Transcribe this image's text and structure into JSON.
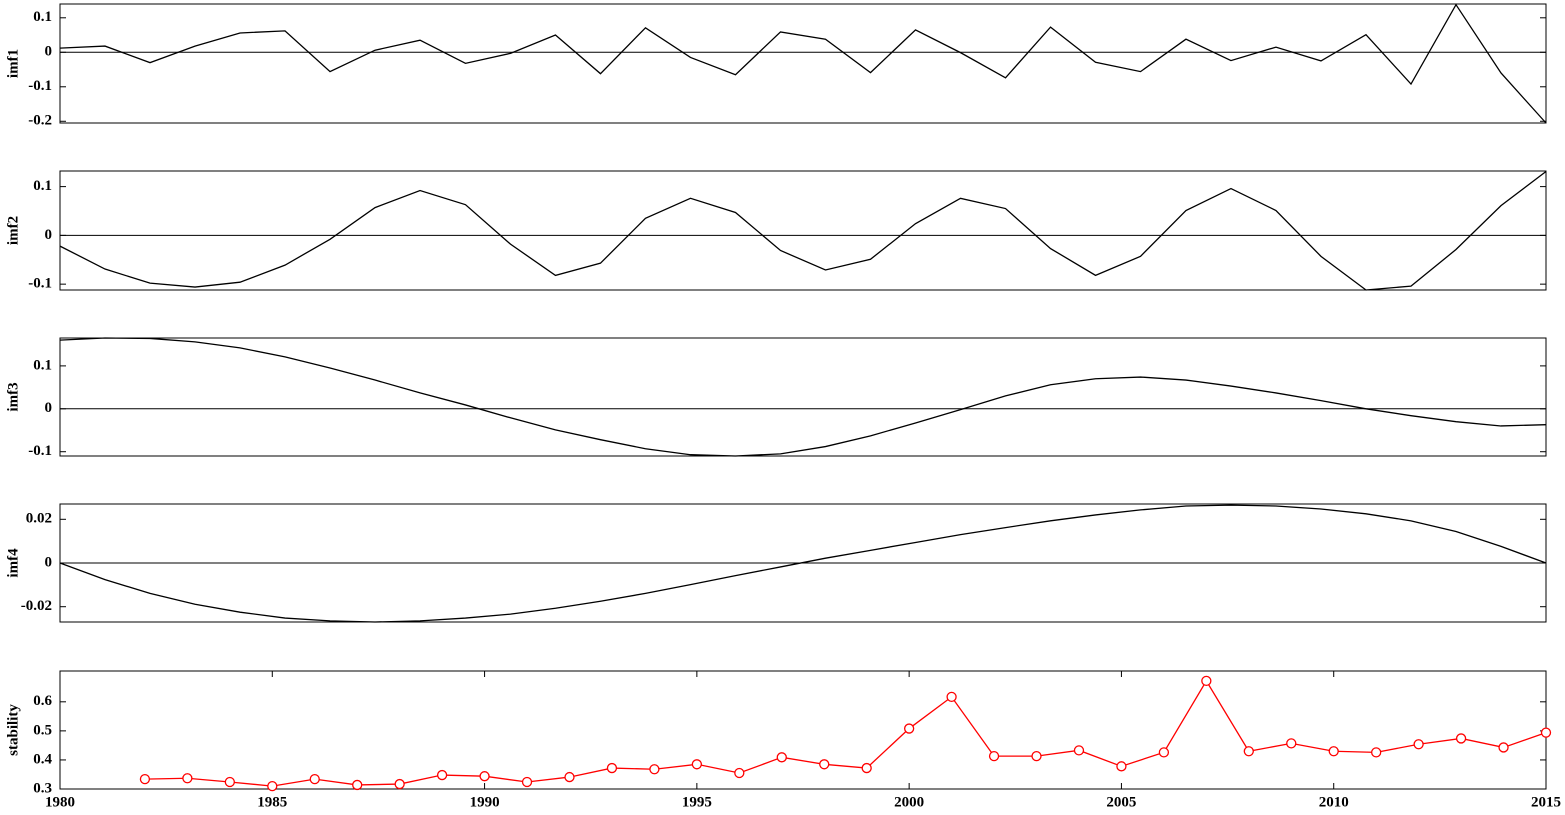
{
  "chart_data": [
    {
      "type": "line",
      "ylabel": "imf1",
      "color": "#000000",
      "xlim": [
        1980,
        2015
      ],
      "ylim": [
        -0.205,
        0.14
      ],
      "yticks": [
        -0.2,
        -0.1,
        0,
        0.1
      ],
      "x": [
        1980,
        1981.06,
        1982.12,
        1983.18,
        1984.24,
        1985.3,
        1986.36,
        1987.42,
        1988.48,
        1989.55,
        1990.61,
        1991.67,
        1992.73,
        1993.79,
        1994.85,
        1995.91,
        1996.97,
        1998.03,
        1999.09,
        2000.15,
        2001.21,
        2002.27,
        2003.33,
        2004.39,
        2005.45,
        2006.52,
        2007.58,
        2008.64,
        2009.7,
        2010.76,
        2011.82,
        2012.88,
        2013.94,
        2015
      ],
      "values": [
        0.012,
        0.018,
        -0.03,
        0.018,
        0.056,
        0.062,
        -0.056,
        0.006,
        0.035,
        -0.032,
        -0.003,
        0.05,
        -0.062,
        0.071,
        -0.015,
        -0.065,
        0.059,
        0.038,
        -0.059,
        0.065,
        -0.001,
        -0.074,
        0.073,
        -0.029,
        -0.056,
        0.038,
        -0.024,
        0.015,
        -0.025,
        0.051,
        -0.092,
        0.138,
        -0.06,
        -0.205
      ]
    },
    {
      "type": "line",
      "ylabel": "imf2",
      "color": "#000000",
      "xlim": [
        1980,
        2015
      ],
      "ylim": [
        -0.112,
        0.132
      ],
      "yticks": [
        -0.1,
        0,
        0.1
      ],
      "x": [
        1980,
        1981.06,
        1982.12,
        1983.18,
        1984.24,
        1985.3,
        1986.36,
        1987.42,
        1988.48,
        1989.55,
        1990.61,
        1991.67,
        1992.73,
        1993.79,
        1994.85,
        1995.91,
        1996.97,
        1998.03,
        1999.09,
        2000.15,
        2001.21,
        2002.27,
        2003.33,
        2004.39,
        2005.45,
        2006.52,
        2007.58,
        2008.64,
        2009.7,
        2010.76,
        2011.82,
        2012.88,
        2013.94,
        2015
      ],
      "values": [
        -0.022,
        -0.069,
        -0.098,
        -0.106,
        -0.096,
        -0.061,
        -0.008,
        0.057,
        0.092,
        0.063,
        -0.018,
        -0.082,
        -0.057,
        0.035,
        0.076,
        0.047,
        -0.031,
        -0.071,
        -0.049,
        0.024,
        0.076,
        0.055,
        -0.027,
        -0.082,
        -0.043,
        0.051,
        0.096,
        0.051,
        -0.043,
        -0.112,
        -0.104,
        -0.029,
        0.061,
        0.131
      ]
    },
    {
      "type": "line",
      "ylabel": "imf3",
      "color": "#000000",
      "xlim": [
        1980,
        2015
      ],
      "ylim": [
        -0.11,
        0.165
      ],
      "yticks": [
        -0.1,
        0,
        0.1
      ],
      "x": [
        1980,
        1981.06,
        1982.12,
        1983.18,
        1984.24,
        1985.3,
        1986.36,
        1987.42,
        1988.48,
        1989.55,
        1990.61,
        1991.67,
        1992.73,
        1993.79,
        1994.85,
        1995.91,
        1996.97,
        1998.03,
        1999.09,
        2000.15,
        2001.21,
        2002.27,
        2003.33,
        2004.39,
        2005.45,
        2006.52,
        2007.58,
        2008.64,
        2009.7,
        2010.76,
        2011.82,
        2012.88,
        2013.94,
        2015
      ],
      "values": [
        0.16,
        0.165,
        0.164,
        0.156,
        0.142,
        0.121,
        0.095,
        0.067,
        0.037,
        0.009,
        -0.021,
        -0.049,
        -0.072,
        -0.093,
        -0.107,
        -0.11,
        -0.105,
        -0.088,
        -0.063,
        -0.033,
        -0.002,
        0.03,
        0.056,
        0.07,
        0.074,
        0.067,
        0.053,
        0.037,
        0.019,
        0,
        -0.016,
        -0.03,
        -0.04,
        -0.037
      ]
    },
    {
      "type": "line",
      "ylabel": "imf4",
      "color": "#000000",
      "xlim": [
        1980,
        2015
      ],
      "ylim": [
        -0.027,
        0.027
      ],
      "yticks": [
        -0.02,
        0,
        0.02
      ],
      "x": [
        1980,
        1981.06,
        1982.12,
        1983.18,
        1984.24,
        1985.3,
        1986.36,
        1987.42,
        1988.48,
        1989.55,
        1990.61,
        1991.67,
        1992.73,
        1993.79,
        1994.85,
        1995.91,
        1996.97,
        1998.03,
        1999.09,
        2000.15,
        2001.21,
        2002.27,
        2003.33,
        2004.39,
        2005.45,
        2006.52,
        2007.58,
        2008.64,
        2009.7,
        2010.76,
        2011.82,
        2012.88,
        2013.94,
        2015
      ],
      "values": [
        0,
        -0.0076,
        -0.0139,
        -0.0189,
        -0.0225,
        -0.0252,
        -0.0265,
        -0.027,
        -0.0265,
        -0.0252,
        -0.0234,
        -0.0207,
        -0.0175,
        -0.0139,
        -0.0099,
        -0.0058,
        -0.0018,
        0.0022,
        0.0058,
        0.0094,
        0.013,
        0.0162,
        0.0193,
        0.022,
        0.0243,
        0.0261,
        0.0265,
        0.0261,
        0.0247,
        0.0225,
        0.0193,
        0.0144,
        0.0076,
        0
      ]
    },
    {
      "type": "line",
      "ylabel": "stability",
      "color": "#ff0000",
      "marker": "o",
      "xlim": [
        1980,
        2015
      ],
      "xticks": [
        1980,
        1985,
        1990,
        1995,
        2000,
        2005,
        2010,
        2015
      ],
      "ylim": [
        0.3,
        0.706
      ],
      "yticks": [
        0.3,
        0.4,
        0.5,
        0.6
      ],
      "x": [
        1982,
        1983,
        1984,
        1985,
        1986,
        1987,
        1988,
        1989,
        1990,
        1991,
        1992,
        1993,
        1994,
        1995,
        1996,
        1997,
        1998,
        1999,
        2000,
        2001,
        2002,
        2003,
        2004,
        2005,
        2006,
        2007,
        2008,
        2009,
        2010,
        2011,
        2012,
        2013,
        2014,
        2015
      ],
      "values": [
        0.334,
        0.337,
        0.324,
        0.31,
        0.334,
        0.314,
        0.317,
        0.348,
        0.344,
        0.324,
        0.341,
        0.372,
        0.368,
        0.385,
        0.355,
        0.409,
        0.385,
        0.372,
        0.508,
        0.617,
        0.413,
        0.413,
        0.433,
        0.378,
        0.426,
        0.672,
        0.43,
        0.457,
        0.43,
        0.426,
        0.454,
        0.474,
        0.443,
        0.494
      ]
    }
  ]
}
